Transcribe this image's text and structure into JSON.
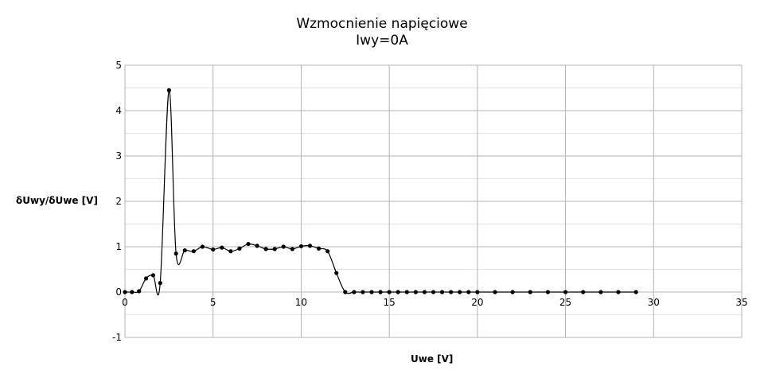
{
  "chart_data": {
    "type": "line",
    "title": "Wzmocnienie napięciowe",
    "subtitle": "Iwy=0A",
    "xlabel": "Uwe [V]",
    "ylabel": "δUwy/δUwe [V]",
    "xlim": [
      0,
      35
    ],
    "ylim": [
      -1,
      5
    ],
    "xticks": [
      0,
      5,
      10,
      15,
      20,
      25,
      30,
      35
    ],
    "yticks": [
      -1,
      0,
      1,
      2,
      3,
      4,
      5
    ],
    "grid": true,
    "legend": "none",
    "series": [
      {
        "color": "#000000",
        "x": [
          0,
          0.4,
          0.8,
          1.2,
          1.6,
          2.0,
          2.5,
          2.9,
          3.4,
          3.9,
          4.4,
          5.0,
          5.5,
          6.0,
          6.5,
          7.0,
          7.5,
          8.0,
          8.5,
          9.0,
          9.5,
          10.0,
          10.5,
          11.0,
          11.5,
          12.0,
          12.5,
          13.0,
          13.5,
          14.0,
          14.5,
          15.0,
          15.5,
          16.0,
          16.5,
          17.0,
          17.5,
          18.0,
          18.5,
          19.0,
          19.5,
          20.0,
          21.0,
          22.0,
          23.0,
          24.0,
          25.0,
          26.0,
          27.0,
          28.0,
          29.0
        ],
        "y": [
          0,
          0,
          0.02,
          0.3,
          0.37,
          0.2,
          4.45,
          0.85,
          0.92,
          0.9,
          1.0,
          0.94,
          0.98,
          0.9,
          0.96,
          1.06,
          1.02,
          0.95,
          0.95,
          1.0,
          0.95,
          1.01,
          1.02,
          0.96,
          0.9,
          0.42,
          0.0,
          0.0,
          0.0,
          0.0,
          0.0,
          0.0,
          0.0,
          0.0,
          0.0,
          0.0,
          0.0,
          0.0,
          0.0,
          0.0,
          0.0,
          0.0,
          0.0,
          0.0,
          0.0,
          0.0,
          0.0,
          0.0,
          0.0,
          0.0,
          0.0
        ]
      }
    ]
  }
}
